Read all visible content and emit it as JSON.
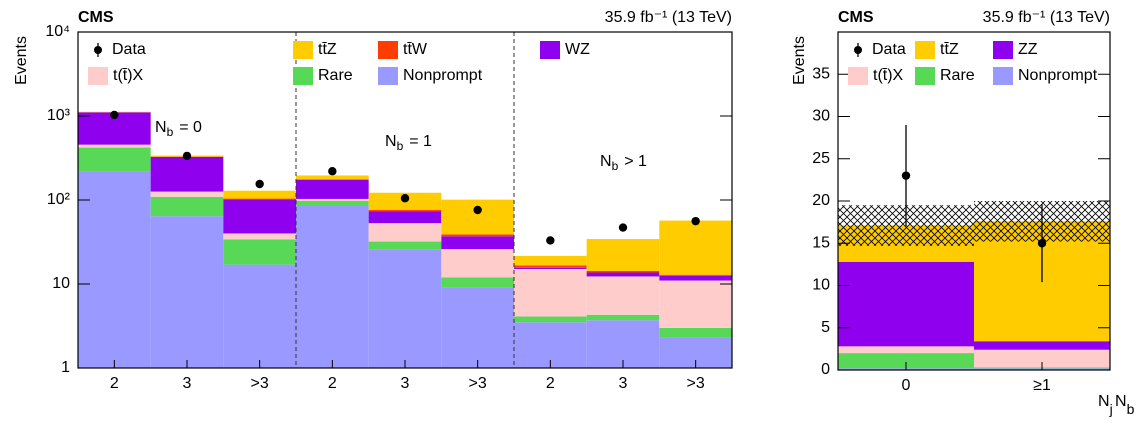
{
  "chart_data": [
    {
      "type": "bar",
      "stacked": true,
      "log_scale": true,
      "experiment": "CMS",
      "luminosity": "35.9 fb⁻¹ (13 TeV)",
      "ylabel": "Events",
      "xlabel": "N",
      "xlabel_sub": "j",
      "categories": [
        "2",
        "3",
        ">3",
        "2",
        "3",
        ">3",
        "2",
        "3",
        ">3"
      ],
      "ylim": [
        1,
        10000
      ],
      "yticks": [
        1,
        10,
        {
          "value": 100,
          "label": "10²"
        },
        {
          "value": 1000,
          "label": "10³"
        },
        {
          "value": 10000,
          "label": "10⁴"
        }
      ],
      "data": {
        "name": "Data",
        "values": [
          1030,
          335,
          155,
          220,
          105,
          76,
          33,
          47,
          56
        ]
      },
      "series": [
        {
          "name": "tt̄Z",
          "color": "#ffcc00",
          "values": [
            15,
            10,
            25,
            20,
            46,
            62,
            5,
            20,
            44
          ]
        },
        {
          "name": "tt̄W",
          "color": "#ff3d00",
          "values": [
            2,
            2,
            2,
            3,
            3,
            2,
            1,
            0.6,
            0.4
          ]
        },
        {
          "name": "WZ",
          "color": "#8f00ee",
          "values": [
            650,
            200,
            62,
            70,
            20,
            11,
            0.5,
            1.4,
            1.5
          ]
        },
        {
          "name": "t(t̄)X",
          "color": "#ffcccc",
          "values": [
            35,
            17,
            6,
            5,
            21,
            14,
            11,
            8,
            8
          ]
        },
        {
          "name": "Rare",
          "color": "#57d957",
          "values": [
            200,
            45,
            17,
            12,
            6,
            3,
            0.6,
            0.6,
            0.7
          ]
        },
        {
          "name": "Nonprompt",
          "color": "#9999ff",
          "values": [
            220,
            63,
            16,
            85,
            25,
            8,
            2.5,
            2.7,
            1.3
          ]
        }
      ],
      "annotations": [
        {
          "text": "N",
          "sub": "b",
          "rest": "= 0"
        },
        {
          "text": "N",
          "sub": "b",
          "rest": "= 1"
        },
        {
          "text": "N",
          "sub": "b",
          "rest": "> 1"
        }
      ]
    },
    {
      "type": "bar",
      "stacked": true,
      "log_scale": false,
      "experiment": "CMS",
      "luminosity": "35.9 fb⁻¹ (13 TeV)",
      "ylabel": "Events",
      "xlabel": "N",
      "xlabel_sub": "b",
      "categories": [
        "0",
        "≥1"
      ],
      "ylim": [
        0,
        40
      ],
      "yticks": [
        0,
        5,
        10,
        15,
        20,
        25,
        30,
        35
      ],
      "data": {
        "name": "Data",
        "values": [
          23,
          15
        ],
        "errors": [
          6,
          4.6
        ]
      },
      "uncertainty": [
        2.4,
        2.4
      ],
      "series": [
        {
          "name": "tt̄Z",
          "color": "#ffcc00",
          "values": [
            4.3,
            14.2
          ]
        },
        {
          "name": "ZZ",
          "color": "#8f00ee",
          "values": [
            10.0,
            1.0
          ]
        },
        {
          "name": "t(t̄)X",
          "color": "#ffcccc",
          "values": [
            0.8,
            2.1
          ]
        },
        {
          "name": "Rare",
          "color": "#57d957",
          "values": [
            1.8,
            0.1
          ]
        },
        {
          "name": "Nonprompt",
          "color": "#9999ff",
          "values": [
            0.2,
            0.2
          ]
        }
      ]
    }
  ]
}
